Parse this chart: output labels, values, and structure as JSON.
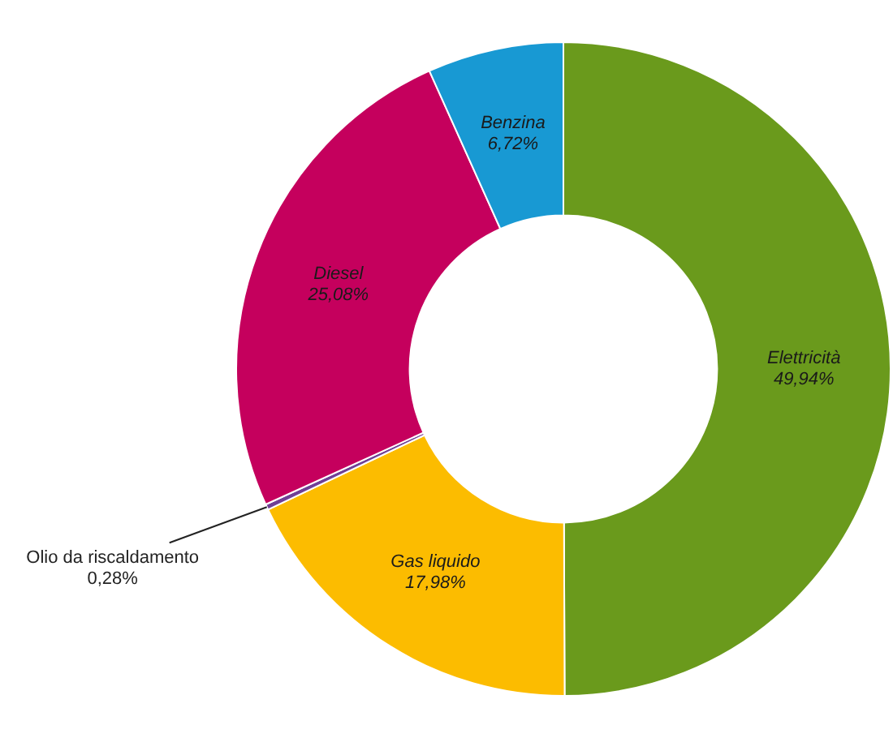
{
  "chart_data": {
    "type": "donut",
    "categories": [
      "Elettricità",
      "Gas liquido",
      "Olio da riscaldamento",
      "Diesel",
      "Benzina"
    ],
    "values": [
      49.94,
      17.98,
      0.28,
      25.08,
      6.72
    ],
    "colors": [
      "#6a9a1c",
      "#fcbc00",
      "#6f3f96",
      "#c5005d",
      "#1899d3"
    ],
    "value_labels": [
      "49,94%",
      "17,98%",
      "0,28%",
      "25,08%",
      "6,72%"
    ],
    "legend": false
  }
}
